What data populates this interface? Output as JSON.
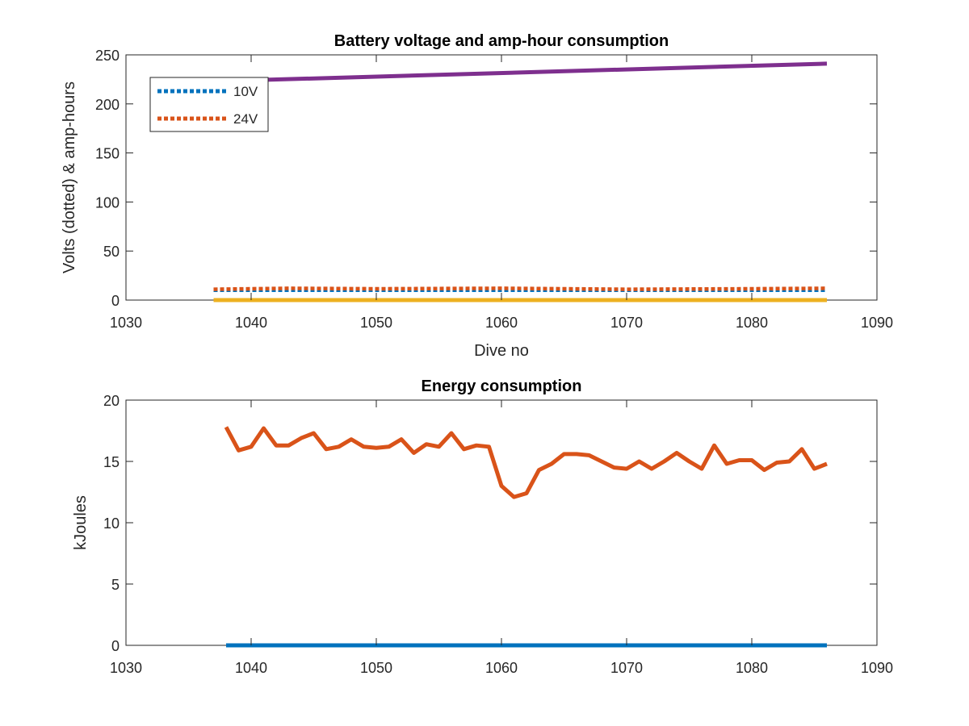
{
  "chart_data": [
    {
      "type": "line",
      "title": "Battery voltage and amp-hour consumption",
      "xlabel": "Dive no",
      "ylabel": "Volts (dotted) & amp-hours",
      "xlim": [
        1030,
        1090
      ],
      "ylim": [
        0,
        250
      ],
      "xticks": [
        1030,
        1040,
        1050,
        1060,
        1070,
        1080,
        1090
      ],
      "yticks": [
        0,
        50,
        100,
        150,
        200,
        250
      ],
      "grid": false,
      "legend": {
        "placement": "top-left",
        "entries": [
          "10V",
          "24V"
        ]
      },
      "series": [
        {
          "name": "10V",
          "style": "dotted",
          "color": "#0072BD",
          "x": [
            1037,
            1086
          ],
          "y": [
            10,
            10
          ]
        },
        {
          "name": "24V",
          "style": "dotted",
          "color": "#D95319",
          "x": [
            1037,
            1043,
            1050,
            1060,
            1065,
            1070,
            1080,
            1086
          ],
          "y": [
            11,
            12,
            11.5,
            12,
            11.5,
            11,
            11.5,
            12
          ]
        },
        {
          "style": "solid",
          "color": "#EDB120",
          "x": [
            1037,
            1086
          ],
          "y": [
            0,
            0
          ]
        },
        {
          "style": "solid",
          "color": "#7E2F8E",
          "x": [
            1037,
            1086
          ],
          "y": [
            223,
            241
          ]
        }
      ]
    },
    {
      "type": "line",
      "title": "Energy consumption",
      "xlabel": "",
      "ylabel": "kJoules",
      "xlim": [
        1030,
        1090
      ],
      "ylim": [
        0,
        20
      ],
      "xticks": [
        1030,
        1040,
        1050,
        1060,
        1070,
        1080,
        1090
      ],
      "yticks": [
        0,
        5,
        10,
        15,
        20
      ],
      "grid": false,
      "series": [
        {
          "style": "solid",
          "color": "#0072BD",
          "x": [
            1038,
            1086
          ],
          "y": [
            0,
            0
          ]
        },
        {
          "style": "solid",
          "color": "#D95319",
          "x": [
            1038,
            1039,
            1040,
            1041,
            1042,
            1043,
            1044,
            1045,
            1046,
            1047,
            1048,
            1049,
            1050,
            1051,
            1052,
            1053,
            1054,
            1055,
            1056,
            1057,
            1058,
            1059,
            1060,
            1061,
            1062,
            1063,
            1064,
            1065,
            1066,
            1067,
            1068,
            1069,
            1070,
            1071,
            1072,
            1073,
            1074,
            1075,
            1076,
            1077,
            1078,
            1079,
            1080,
            1081,
            1082,
            1083,
            1084,
            1085,
            1086
          ],
          "y": [
            17.8,
            15.9,
            16.2,
            17.7,
            16.3,
            16.3,
            16.9,
            17.3,
            16.0,
            16.2,
            16.8,
            16.2,
            16.1,
            16.2,
            16.8,
            15.7,
            16.4,
            16.2,
            17.3,
            16.0,
            16.3,
            16.2,
            13.0,
            12.1,
            12.4,
            14.3,
            14.8,
            15.6,
            15.6,
            15.5,
            15.0,
            14.5,
            14.4,
            15.0,
            14.4,
            15.0,
            15.7,
            15.0,
            14.4,
            16.3,
            14.8,
            15.1,
            15.1,
            14.3,
            14.9,
            15.0,
            16.0,
            14.4,
            14.8
          ]
        }
      ]
    }
  ]
}
